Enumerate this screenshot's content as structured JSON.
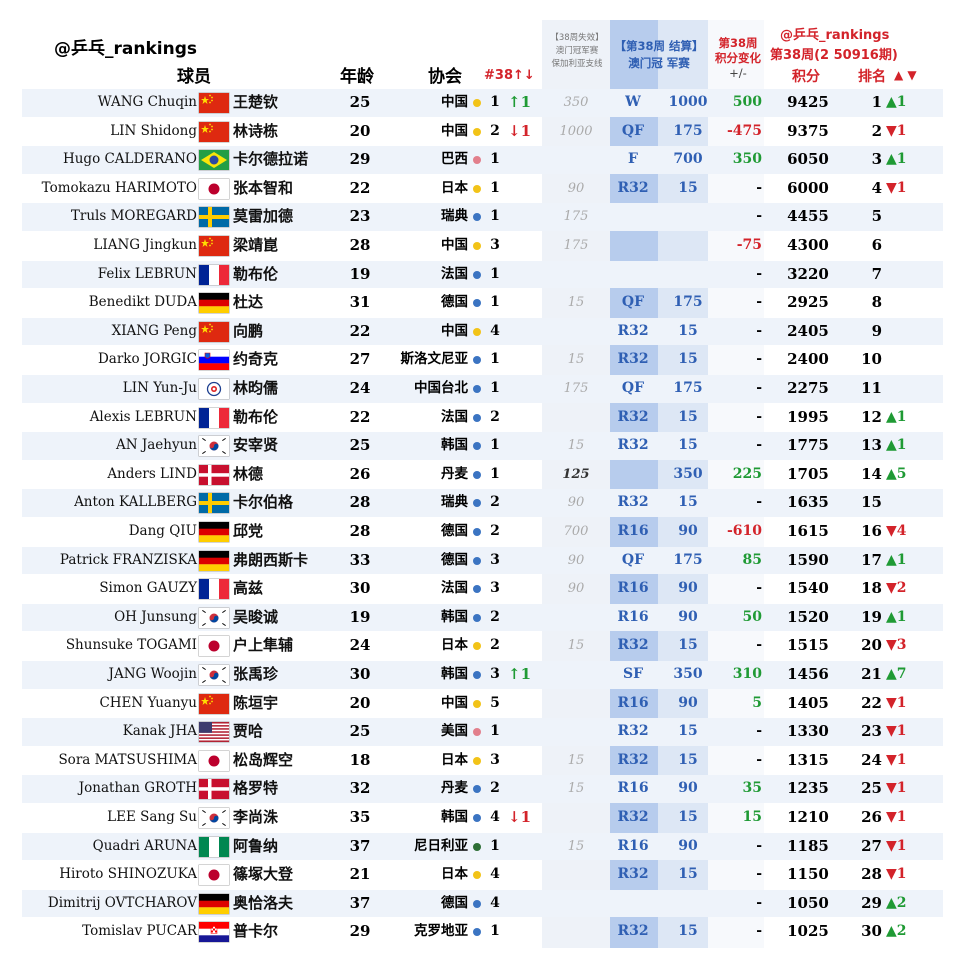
{
  "header": {
    "handle": "@乒乓_rankings",
    "player": "球员",
    "age": "年龄",
    "association": "协会",
    "count_change": "#38↑↓",
    "defend_title": "【38周失效】",
    "defend_sub1": "澳门冠军赛",
    "defend_sub2": "保加利亚支线",
    "week_result_title": "【第38周 结算】",
    "week_result_sub": "澳门冠 军赛",
    "delta_title": "第38周",
    "delta_sub": "积分变化",
    "delta_pm": "+/-",
    "right_handle": "@乒乓_rankings",
    "period": "第38周(2 50916期)",
    "points": "积分",
    "rank": "排名",
    "rank_arrows": "▲ ▼"
  },
  "colors": {
    "red": "#d3232a",
    "green": "#1f9a34",
    "blue": "#2f5fb3",
    "column_bg": "#dde7f5",
    "blue_column_bg": "#a9c3ea",
    "dot_yellow": "#f2c318",
    "dot_blue": "#3b74c2",
    "dot_pink": "#e27f8c",
    "dot_green": "#2d6e35"
  },
  "rows": [
    {
      "en": "WANG Chuqin",
      "flag": "china",
      "zh": "王楚钦",
      "age": "25",
      "assoc": "中国",
      "dot": "yellow",
      "count": "1",
      "chg": "↑1",
      "chg_color": "green",
      "defend": "350",
      "defend_dark": false,
      "round": "W",
      "wpts": "1000",
      "pdelta": "500",
      "pdelta_color": "green",
      "total": "9425",
      "rank": "1",
      "rchg": "▲1",
      "rchg_color": "green"
    },
    {
      "en": "LIN Shidong",
      "flag": "china",
      "zh": "林诗栋",
      "age": "20",
      "assoc": "中国",
      "dot": "yellow",
      "count": "2",
      "chg": "↓1",
      "chg_color": "red",
      "defend": "1000",
      "defend_dark": false,
      "round": "QF",
      "wpts": "175",
      "pdelta": "-475",
      "pdelta_color": "red",
      "total": "9375",
      "rank": "2",
      "rchg": "▼1",
      "rchg_color": "red"
    },
    {
      "en": "Hugo CALDERANO",
      "flag": "brazil",
      "zh": "卡尔德拉诺",
      "age": "29",
      "assoc": "巴西",
      "dot": "pink",
      "count": "1",
      "chg": "",
      "chg_color": "",
      "defend": "",
      "defend_dark": false,
      "round": "F",
      "wpts": "700",
      "pdelta": "350",
      "pdelta_color": "green",
      "total": "6050",
      "rank": "3",
      "rchg": "▲1",
      "rchg_color": "green"
    },
    {
      "en": "Tomokazu HARIMOTO",
      "flag": "japan",
      "zh": "张本智和",
      "age": "22",
      "assoc": "日本",
      "dot": "yellow",
      "count": "1",
      "chg": "",
      "chg_color": "",
      "defend": "90",
      "defend_dark": false,
      "round": "R32",
      "wpts": "15",
      "pdelta": "-",
      "pdelta_color": "black",
      "total": "6000",
      "rank": "4",
      "rchg": "▼1",
      "rchg_color": "red"
    },
    {
      "en": "Truls MOREGARD",
      "flag": "sweden",
      "zh": "莫雷加德",
      "age": "23",
      "assoc": "瑞典",
      "dot": "blue",
      "count": "1",
      "chg": "",
      "chg_color": "",
      "defend": "175",
      "defend_dark": false,
      "round": "",
      "wpts": "",
      "pdelta": "-",
      "pdelta_color": "black",
      "total": "4455",
      "rank": "5",
      "rchg": "",
      "rchg_color": ""
    },
    {
      "en": "LIANG Jingkun",
      "flag": "china",
      "zh": "梁靖崑",
      "age": "28",
      "assoc": "中国",
      "dot": "yellow",
      "count": "3",
      "chg": "",
      "chg_color": "",
      "defend": "175",
      "defend_dark": false,
      "round": "",
      "wpts": "",
      "pdelta": "-75",
      "pdelta_color": "red",
      "total": "4300",
      "rank": "6",
      "rchg": "",
      "rchg_color": ""
    },
    {
      "en": "Felix LEBRUN",
      "flag": "france",
      "zh": "勒布伦",
      "age": "19",
      "assoc": "法国",
      "dot": "blue",
      "count": "1",
      "chg": "",
      "chg_color": "",
      "defend": "",
      "defend_dark": false,
      "round": "",
      "wpts": "",
      "pdelta": "-",
      "pdelta_color": "black",
      "total": "3220",
      "rank": "7",
      "rchg": "",
      "rchg_color": ""
    },
    {
      "en": "Benedikt DUDA",
      "flag": "germany",
      "zh": "杜达",
      "age": "31",
      "assoc": "德国",
      "dot": "blue",
      "count": "1",
      "chg": "",
      "chg_color": "",
      "defend": "15",
      "defend_dark": false,
      "round": "QF",
      "wpts": "175",
      "pdelta": "-",
      "pdelta_color": "black",
      "total": "2925",
      "rank": "8",
      "rchg": "",
      "rchg_color": ""
    },
    {
      "en": "XIANG Peng",
      "flag": "china",
      "zh": "向鹏",
      "age": "22",
      "assoc": "中国",
      "dot": "yellow",
      "count": "4",
      "chg": "",
      "chg_color": "",
      "defend": "",
      "defend_dark": false,
      "round": "R32",
      "wpts": "15",
      "pdelta": "-",
      "pdelta_color": "black",
      "total": "2405",
      "rank": "9",
      "rchg": "",
      "rchg_color": ""
    },
    {
      "en": "Darko JORGIC",
      "flag": "slovenia",
      "zh": "约奇克",
      "age": "27",
      "assoc": "斯洛文尼亚",
      "dot": "blue",
      "count": "1",
      "chg": "",
      "chg_color": "",
      "defend": "15",
      "defend_dark": false,
      "round": "R32",
      "wpts": "15",
      "pdelta": "-",
      "pdelta_color": "black",
      "total": "2400",
      "rank": "10",
      "rchg": "",
      "rchg_color": ""
    },
    {
      "en": "LIN Yun-Ju",
      "flag": "tpe",
      "zh": "林昀儒",
      "age": "24",
      "assoc": "中国台北",
      "dot": "blue",
      "count": "1",
      "chg": "",
      "chg_color": "",
      "defend": "175",
      "defend_dark": false,
      "round": "QF",
      "wpts": "175",
      "pdelta": "-",
      "pdelta_color": "black",
      "total": "2275",
      "rank": "11",
      "rchg": "",
      "rchg_color": ""
    },
    {
      "en": "Alexis LEBRUN",
      "flag": "france",
      "zh": "勒布伦",
      "age": "22",
      "assoc": "法国",
      "dot": "blue",
      "count": "2",
      "chg": "",
      "chg_color": "",
      "defend": "",
      "defend_dark": false,
      "round": "R32",
      "wpts": "15",
      "pdelta": "-",
      "pdelta_color": "black",
      "total": "1995",
      "rank": "12",
      "rchg": "▲1",
      "rchg_color": "green"
    },
    {
      "en": "AN Jaehyun",
      "flag": "korea",
      "zh": "安宰贤",
      "age": "25",
      "assoc": "韩国",
      "dot": "blue",
      "count": "1",
      "chg": "",
      "chg_color": "",
      "defend": "15",
      "defend_dark": false,
      "round": "R32",
      "wpts": "15",
      "pdelta": "-",
      "pdelta_color": "black",
      "total": "1775",
      "rank": "13",
      "rchg": "▲1",
      "rchg_color": "green"
    },
    {
      "en": "Anders LIND",
      "flag": "denmark",
      "zh": "林德",
      "age": "26",
      "assoc": "丹麦",
      "dot": "blue",
      "count": "1",
      "chg": "",
      "chg_color": "",
      "defend": "125",
      "defend_dark": true,
      "round": "",
      "wpts": "350",
      "pdelta": "225",
      "pdelta_color": "green",
      "total": "1705",
      "rank": "14",
      "rchg": "▲5",
      "rchg_color": "green"
    },
    {
      "en": "Anton KALLBERG",
      "flag": "sweden",
      "zh": "卡尔伯格",
      "age": "28",
      "assoc": "瑞典",
      "dot": "blue",
      "count": "2",
      "chg": "",
      "chg_color": "",
      "defend": "90",
      "defend_dark": false,
      "round": "R32",
      "wpts": "15",
      "pdelta": "-",
      "pdelta_color": "black",
      "total": "1635",
      "rank": "15",
      "rchg": "",
      "rchg_color": ""
    },
    {
      "en": "Dang QIU",
      "flag": "germany",
      "zh": "邱党",
      "age": "28",
      "assoc": "德国",
      "dot": "blue",
      "count": "2",
      "chg": "",
      "chg_color": "",
      "defend": "700",
      "defend_dark": false,
      "round": "R16",
      "wpts": "90",
      "pdelta": "-610",
      "pdelta_color": "red",
      "total": "1615",
      "rank": "16",
      "rchg": "▼4",
      "rchg_color": "red"
    },
    {
      "en": "Patrick FRANZISKA",
      "flag": "germany",
      "zh": "弗朗西斯卡",
      "age": "33",
      "assoc": "德国",
      "dot": "blue",
      "count": "3",
      "chg": "",
      "chg_color": "",
      "defend": "90",
      "defend_dark": false,
      "round": "QF",
      "wpts": "175",
      "pdelta": "85",
      "pdelta_color": "green",
      "total": "1590",
      "rank": "17",
      "rchg": "▲1",
      "rchg_color": "green"
    },
    {
      "en": "Simon GAUZY",
      "flag": "france",
      "zh": "高兹",
      "age": "30",
      "assoc": "法国",
      "dot": "blue",
      "count": "3",
      "chg": "",
      "chg_color": "",
      "defend": "90",
      "defend_dark": false,
      "round": "R16",
      "wpts": "90",
      "pdelta": "-",
      "pdelta_color": "black",
      "total": "1540",
      "rank": "18",
      "rchg": "▼2",
      "rchg_color": "red"
    },
    {
      "en": "OH Junsung",
      "flag": "korea",
      "zh": "吴晙诚",
      "age": "19",
      "assoc": "韩国",
      "dot": "blue",
      "count": "2",
      "chg": "",
      "chg_color": "",
      "defend": "",
      "defend_dark": false,
      "round": "R16",
      "wpts": "90",
      "pdelta": "50",
      "pdelta_color": "green",
      "total": "1520",
      "rank": "19",
      "rchg": "▲1",
      "rchg_color": "green"
    },
    {
      "en": "Shunsuke TOGAMI",
      "flag": "japan",
      "zh": "户上隼辅",
      "age": "24",
      "assoc": "日本",
      "dot": "yellow",
      "count": "2",
      "chg": "",
      "chg_color": "",
      "defend": "15",
      "defend_dark": false,
      "round": "R32",
      "wpts": "15",
      "pdelta": "-",
      "pdelta_color": "black",
      "total": "1515",
      "rank": "20",
      "rchg": "▼3",
      "rchg_color": "red"
    },
    {
      "en": "JANG Woojin",
      "flag": "korea",
      "zh": "张禹珍",
      "age": "30",
      "assoc": "韩国",
      "dot": "blue",
      "count": "3",
      "chg": "↑1",
      "chg_color": "green",
      "defend": "",
      "defend_dark": false,
      "round": "SF",
      "wpts": "350",
      "pdelta": "310",
      "pdelta_color": "green",
      "total": "1456",
      "rank": "21",
      "rchg": "▲7",
      "rchg_color": "green"
    },
    {
      "en": "CHEN Yuanyu",
      "flag": "china",
      "zh": "陈垣宇",
      "age": "20",
      "assoc": "中国",
      "dot": "yellow",
      "count": "5",
      "chg": "",
      "chg_color": "",
      "defend": "",
      "defend_dark": false,
      "round": "R16",
      "wpts": "90",
      "pdelta": "5",
      "pdelta_color": "green",
      "total": "1405",
      "rank": "22",
      "rchg": "▼1",
      "rchg_color": "red"
    },
    {
      "en": "Kanak JHA",
      "flag": "usa",
      "zh": "贾哈",
      "age": "25",
      "assoc": "美国",
      "dot": "pink",
      "count": "1",
      "chg": "",
      "chg_color": "",
      "defend": "",
      "defend_dark": false,
      "round": "R32",
      "wpts": "15",
      "pdelta": "-",
      "pdelta_color": "black",
      "total": "1330",
      "rank": "23",
      "rchg": "▼1",
      "rchg_color": "red"
    },
    {
      "en": "Sora MATSUSHIMA",
      "flag": "japan",
      "zh": "松岛辉空",
      "age": "18",
      "assoc": "日本",
      "dot": "yellow",
      "count": "3",
      "chg": "",
      "chg_color": "",
      "defend": "15",
      "defend_dark": false,
      "round": "R32",
      "wpts": "15",
      "pdelta": "-",
      "pdelta_color": "black",
      "total": "1315",
      "rank": "24",
      "rchg": "▼1",
      "rchg_color": "red"
    },
    {
      "en": "Jonathan GROTH",
      "flag": "denmark",
      "zh": "格罗特",
      "age": "32",
      "assoc": "丹麦",
      "dot": "blue",
      "count": "2",
      "chg": "",
      "chg_color": "",
      "defend": "15",
      "defend_dark": false,
      "round": "R16",
      "wpts": "90",
      "pdelta": "35",
      "pdelta_color": "green",
      "total": "1235",
      "rank": "25",
      "rchg": "▼1",
      "rchg_color": "red"
    },
    {
      "en": "LEE Sang Su",
      "flag": "korea",
      "zh": "李尚洙",
      "age": "35",
      "assoc": "韩国",
      "dot": "blue",
      "count": "4",
      "chg": "↓1",
      "chg_color": "red",
      "defend": "",
      "defend_dark": false,
      "round": "R32",
      "wpts": "15",
      "pdelta": "15",
      "pdelta_color": "green",
      "total": "1210",
      "rank": "26",
      "rchg": "▼1",
      "rchg_color": "red"
    },
    {
      "en": "Quadri ARUNA",
      "flag": "nigeria",
      "zh": "阿鲁纳",
      "age": "37",
      "assoc": "尼日利亚",
      "dot": "green",
      "count": "1",
      "chg": "",
      "chg_color": "",
      "defend": "15",
      "defend_dark": false,
      "round": "R16",
      "wpts": "90",
      "pdelta": "-",
      "pdelta_color": "black",
      "total": "1185",
      "rank": "27",
      "rchg": "▼1",
      "rchg_color": "red"
    },
    {
      "en": "Hiroto SHINOZUKA",
      "flag": "japan",
      "zh": "篠塚大登",
      "age": "21",
      "assoc": "日本",
      "dot": "yellow",
      "count": "4",
      "chg": "",
      "chg_color": "",
      "defend": "",
      "defend_dark": false,
      "round": "R32",
      "wpts": "15",
      "pdelta": "-",
      "pdelta_color": "black",
      "total": "1150",
      "rank": "28",
      "rchg": "▼1",
      "rchg_color": "red"
    },
    {
      "en": "Dimitrij OVTCHAROV",
      "flag": "germany",
      "zh": "奥恰洛夫",
      "age": "37",
      "assoc": "德国",
      "dot": "blue",
      "count": "4",
      "chg": "",
      "chg_color": "",
      "defend": "",
      "defend_dark": false,
      "round": "",
      "wpts": "",
      "pdelta": "-",
      "pdelta_color": "black",
      "total": "1050",
      "rank": "29",
      "rchg": "▲2",
      "rchg_color": "green"
    },
    {
      "en": "Tomislav PUCAR",
      "flag": "croatia",
      "zh": "普卡尔",
      "age": "29",
      "assoc": "克罗地亚",
      "dot": "blue",
      "count": "1",
      "chg": "",
      "chg_color": "",
      "defend": "",
      "defend_dark": false,
      "round": "R32",
      "wpts": "15",
      "pdelta": "-",
      "pdelta_color": "black",
      "total": "1025",
      "rank": "30",
      "rchg": "▲2",
      "rchg_color": "green"
    }
  ]
}
